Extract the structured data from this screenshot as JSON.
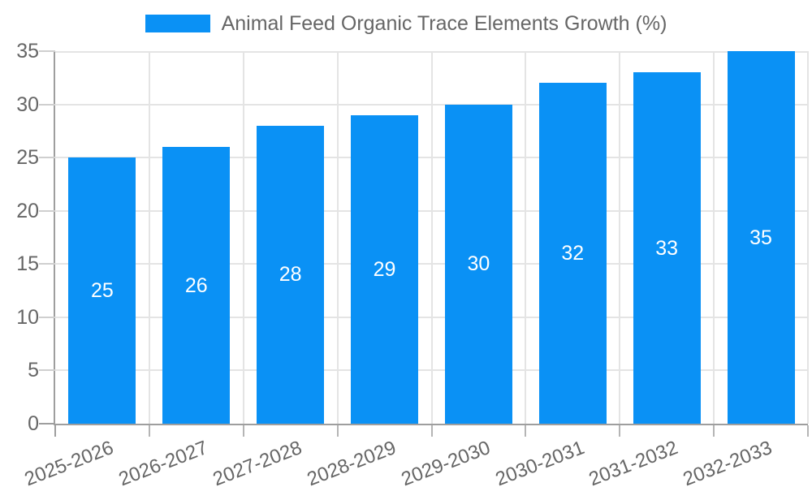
{
  "chart_data": {
    "type": "bar",
    "title": "Animal Feed Organic Trace Elements Growth (%)",
    "categories": [
      "2025-2026",
      "2026-2027",
      "2027-2028",
      "2028-2029",
      "2029-2030",
      "2030-2031",
      "2031-2032",
      "2032-2033"
    ],
    "values": [
      25,
      26,
      28,
      29,
      30,
      32,
      33,
      35
    ],
    "series": [
      {
        "name": "Animal Feed Organic Trace Elements Growth (%)",
        "values": [
          25,
          26,
          28,
          29,
          30,
          32,
          33,
          35
        ]
      }
    ],
    "xlabel": "",
    "ylabel": "",
    "ylim": [
      0,
      35
    ],
    "ytick_step": 5,
    "y_tick_labels": [
      "0",
      "5",
      "10",
      "15",
      "20",
      "25",
      "30",
      "35"
    ],
    "grid": true,
    "legend_position": "top",
    "value_label_position": "inside-center"
  },
  "colors": {
    "bar": "#0A91F5",
    "value_label": "#FFFFFF",
    "legend_text": "#666666",
    "tick_text": "#666666",
    "axis_line": "#9E9E9E",
    "gridline": "#E4E4E4",
    "tick_mark": "#CFCFCF",
    "x_tick_mark": "#B5B5B5",
    "background": "#FFFFFF"
  }
}
